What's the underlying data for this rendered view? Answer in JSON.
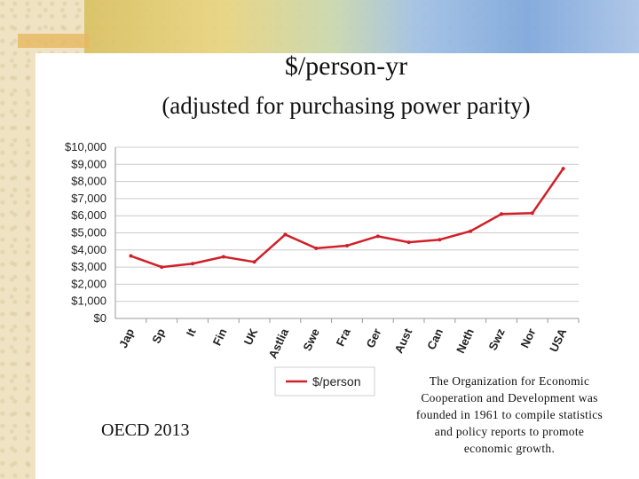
{
  "slide": {
    "title": "$/person-yr",
    "subtitle": "(adjusted for purchasing power parity)",
    "source": "OECD 2013",
    "note": "The Organization for Economic Cooperation and Development was founded in 1961 to compile statistics and policy reports to promote economic growth."
  },
  "chart_data": {
    "type": "line",
    "categories": [
      "Jap",
      "Sp",
      "It",
      "Fin",
      "UK",
      "Astlia",
      "Swe",
      "Fra",
      "Ger",
      "Aust",
      "Can",
      "Neth",
      "Swz",
      "Nor",
      "USA"
    ],
    "series": [
      {
        "name": "$/person",
        "values": [
          3650,
          3000,
          3200,
          3600,
          3300,
          4900,
          4100,
          4250,
          4800,
          4450,
          4600,
          5100,
          6100,
          6150,
          8750
        ],
        "color": "#d0202a"
      }
    ],
    "ylim": [
      0,
      10000
    ],
    "yticks": [
      "$0",
      "$1,000",
      "$2,000",
      "$3,000",
      "$4,000",
      "$5,000",
      "$6,000",
      "$7,000",
      "$8,000",
      "$9,000",
      "$10,000"
    ],
    "grid": true,
    "legend_position": "bottom"
  },
  "colors": {
    "accent": "#d0202a",
    "grid": "#cccccc"
  }
}
